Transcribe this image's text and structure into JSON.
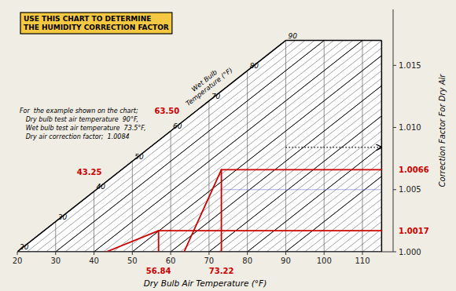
{
  "chart_data": {
    "type": "nomogram",
    "title": [
      "USE THIS CHART TO DETERMINE",
      "THE HUMIDITY CORRECTION FACTOR"
    ],
    "xlabel": "Dry Bulb Air Temperature (°F)",
    "ylabel": "Correction Factor For Dry Air",
    "wet_bulb_label": [
      "Wet Bulb",
      "Temperature (°F)"
    ],
    "xlim": [
      20,
      118
    ],
    "xticks": [
      20,
      30,
      40,
      50,
      60,
      70,
      80,
      90,
      100,
      110
    ],
    "ylim": [
      1.0,
      1.0195
    ],
    "yticks": [
      {
        "value": 1.0,
        "label": "1.000"
      },
      1.005,
      {
        "value": 1.01,
        "label": "1.010"
      },
      1.015
    ],
    "boundary": {
      "start": [
        20,
        1.0
      ],
      "corner": [
        90,
        1.017
      ],
      "right": 115
    },
    "wet_bulb_lines": [
      20,
      30,
      40,
      50,
      60,
      70,
      80,
      90
    ],
    "examples": [
      {
        "dry_bulb": 56.84,
        "wet_bulb": 43.25,
        "wet_bulb_label": "43.25",
        "correction": 1.0017
      },
      {
        "dry_bulb": 73.22,
        "wet_bulb": 63.5,
        "wet_bulb_label": "63.50",
        "correction": 1.0066
      }
    ],
    "dotted_line": {
      "x_start": 90,
      "y": 1.0084
    },
    "reference_line": {
      "x_start": 73.22,
      "y": 1.005,
      "color": "#6666cc"
    },
    "example_text": [
      "For  the example shown on the chart;",
      "   Dry bulb test air temperature  90°F,",
      "   Wet bulb test air temperature  73.5°F,",
      "   Dry air correction factor;  1.0084"
    ],
    "background": "#f0ede4",
    "title_box_color": "#f5c842",
    "hatch_color": "#444444",
    "color": "#cc0000"
  }
}
